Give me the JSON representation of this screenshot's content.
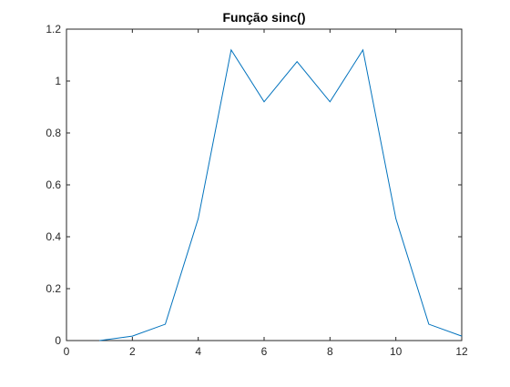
{
  "chart_data": {
    "type": "line",
    "title": "Função sinc()",
    "xlabel": "",
    "ylabel": "",
    "xlim": [
      0,
      12
    ],
    "ylim": [
      0,
      1.2
    ],
    "x_ticks": [
      0,
      2,
      4,
      6,
      8,
      10,
      12
    ],
    "x_tick_labels": [
      "0",
      "2",
      "4",
      "6",
      "8",
      "10",
      "12"
    ],
    "y_ticks": [
      0,
      0.2,
      0.4,
      0.6,
      0.8,
      1,
      1.2
    ],
    "y_tick_labels": [
      "0",
      "0.2",
      "0.4",
      "0.6",
      "0.8",
      "1",
      "1.2"
    ],
    "grid": false,
    "box": true,
    "series": [
      {
        "color": "#0072BD",
        "x": [
          1,
          2,
          3,
          4,
          5,
          6,
          7,
          8,
          9,
          10,
          11,
          12
        ],
        "y": [
          0.0,
          0.017,
          0.063,
          0.47,
          1.12,
          0.92,
          1.075,
          0.92,
          1.12,
          0.47,
          0.063,
          0.017
        ]
      }
    ]
  }
}
